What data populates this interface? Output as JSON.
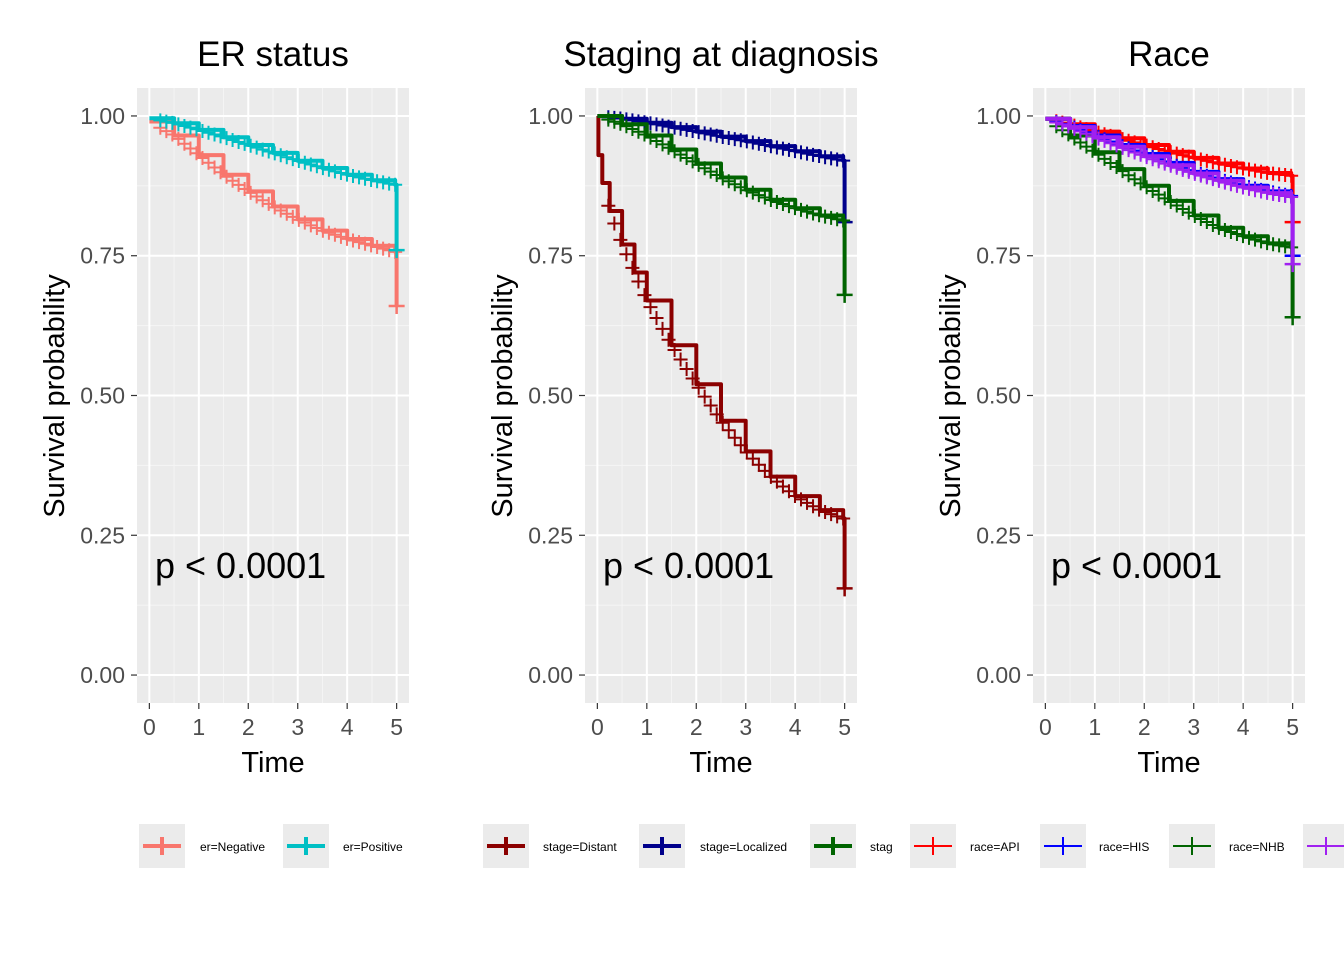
{
  "chart_data": [
    {
      "type": "line",
      "title": "ER status",
      "xlabel": "Time",
      "ylabel": "Survival probability",
      "xlim": [
        -0.25,
        5.25
      ],
      "ylim": [
        -0.05,
        1.05
      ],
      "xticks": [
        "0",
        "1",
        "2",
        "3",
        "4",
        "5"
      ],
      "yticks": [
        "0.00",
        "0.25",
        "0.50",
        "0.75",
        "1.00"
      ],
      "grid": true,
      "pvalue_label": "p < 0.0001",
      "legend_position": "bottom",
      "series": [
        {
          "name": "er=Negative",
          "color": "#F8766D",
          "x": [
            0,
            0.5,
            1,
            1.5,
            2,
            2.5,
            3,
            3.5,
            4,
            4.5,
            4.97
          ],
          "y": [
            0.99,
            0.965,
            0.93,
            0.895,
            0.865,
            0.838,
            0.815,
            0.795,
            0.78,
            0.768,
            0.757
          ],
          "end_drop": 0.66
        },
        {
          "name": "er=Positive",
          "color": "#00BFC4",
          "x": [
            0,
            0.5,
            1,
            1.5,
            2,
            2.5,
            3,
            3.5,
            4,
            4.5,
            4.97
          ],
          "y": [
            0.996,
            0.987,
            0.975,
            0.962,
            0.948,
            0.934,
            0.92,
            0.907,
            0.895,
            0.885,
            0.877
          ],
          "end_drop": 0.76
        }
      ]
    },
    {
      "type": "line",
      "title": "Staging at diagnosis",
      "xlabel": "Time",
      "ylabel": "Survival probability",
      "xlim": [
        -0.25,
        5.25
      ],
      "ylim": [
        -0.05,
        1.05
      ],
      "xticks": [
        "0",
        "1",
        "2",
        "3",
        "4",
        "5"
      ],
      "yticks": [
        "0.00",
        "0.25",
        "0.50",
        "0.75",
        "1.00"
      ],
      "grid": true,
      "pvalue_label": "p < 0.0001",
      "legend_position": "bottom",
      "series": [
        {
          "name": "stage=Distant",
          "color": "#8B0000",
          "x": [
            0,
            0.02,
            0.1,
            0.25,
            0.5,
            0.75,
            1,
            1.5,
            2,
            2.5,
            3,
            3.5,
            4,
            4.5,
            4.97
          ],
          "y": [
            1.0,
            0.93,
            0.88,
            0.83,
            0.77,
            0.72,
            0.67,
            0.59,
            0.52,
            0.455,
            0.4,
            0.355,
            0.32,
            0.295,
            0.28
          ],
          "end_drop": 0.155
        },
        {
          "name": "stage=Localized",
          "color": "#00008B",
          "x": [
            0,
            0.5,
            1,
            1.5,
            2,
            2.5,
            3,
            3.5,
            4,
            4.5,
            4.97
          ],
          "y": [
            1.0,
            0.995,
            0.988,
            0.98,
            0.972,
            0.963,
            0.955,
            0.946,
            0.937,
            0.928,
            0.92
          ],
          "end_drop": 0.81
        },
        {
          "name": "stag",
          "color": "#006400",
          "x": [
            0,
            0.5,
            1,
            1.5,
            2,
            2.5,
            3,
            3.5,
            4,
            4.5,
            4.97
          ],
          "y": [
            1.0,
            0.985,
            0.965,
            0.94,
            0.915,
            0.89,
            0.868,
            0.85,
            0.835,
            0.822,
            0.813
          ],
          "end_drop": 0.68
        }
      ]
    },
    {
      "type": "line",
      "title": "Race",
      "xlabel": "Time",
      "ylabel": "Survival probability",
      "xlim": [
        -0.25,
        5.25
      ],
      "ylim": [
        -0.05,
        1.05
      ],
      "xticks": [
        "0",
        "1",
        "2",
        "3",
        "4",
        "5"
      ],
      "yticks": [
        "0.00",
        "0.25",
        "0.50",
        "0.75",
        "1.00"
      ],
      "grid": true,
      "pvalue_label": "p < 0.0001",
      "legend_position": "bottom",
      "series": [
        {
          "name": "race=API",
          "color": "#FF0000",
          "x": [
            0,
            0.5,
            1,
            1.5,
            2,
            2.5,
            3,
            3.5,
            4,
            4.5,
            4.97
          ],
          "y": [
            0.995,
            0.985,
            0.972,
            0.96,
            0.948,
            0.936,
            0.925,
            0.915,
            0.906,
            0.898,
            0.893
          ],
          "end_drop": 0.81
        },
        {
          "name": "race=HIS",
          "color": "#0000FF",
          "x": [
            0,
            0.5,
            1,
            1.5,
            2,
            2.5,
            3,
            3.5,
            4,
            4.5,
            4.97
          ],
          "y": [
            0.995,
            0.982,
            0.965,
            0.948,
            0.932,
            0.916,
            0.9,
            0.887,
            0.875,
            0.865,
            0.857
          ],
          "end_drop": 0.75
        },
        {
          "name": "race=NHB",
          "color": "#006400",
          "x": [
            0,
            0.5,
            1,
            1.5,
            2,
            2.5,
            3,
            3.5,
            4,
            4.5,
            4.97
          ],
          "y": [
            0.995,
            0.965,
            0.935,
            0.905,
            0.875,
            0.848,
            0.822,
            0.8,
            0.785,
            0.772,
            0.765
          ],
          "end_drop": 0.64
        },
        {
          "name": "",
          "color": "#A020F0",
          "x": [
            0,
            0.5,
            1,
            1.5,
            2,
            2.5,
            3,
            3.5,
            4,
            4.5,
            4.97
          ],
          "y": [
            0.995,
            0.98,
            0.962,
            0.945,
            0.928,
            0.912,
            0.897,
            0.884,
            0.872,
            0.862,
            0.855
          ],
          "end_drop": 0.735
        }
      ]
    }
  ]
}
